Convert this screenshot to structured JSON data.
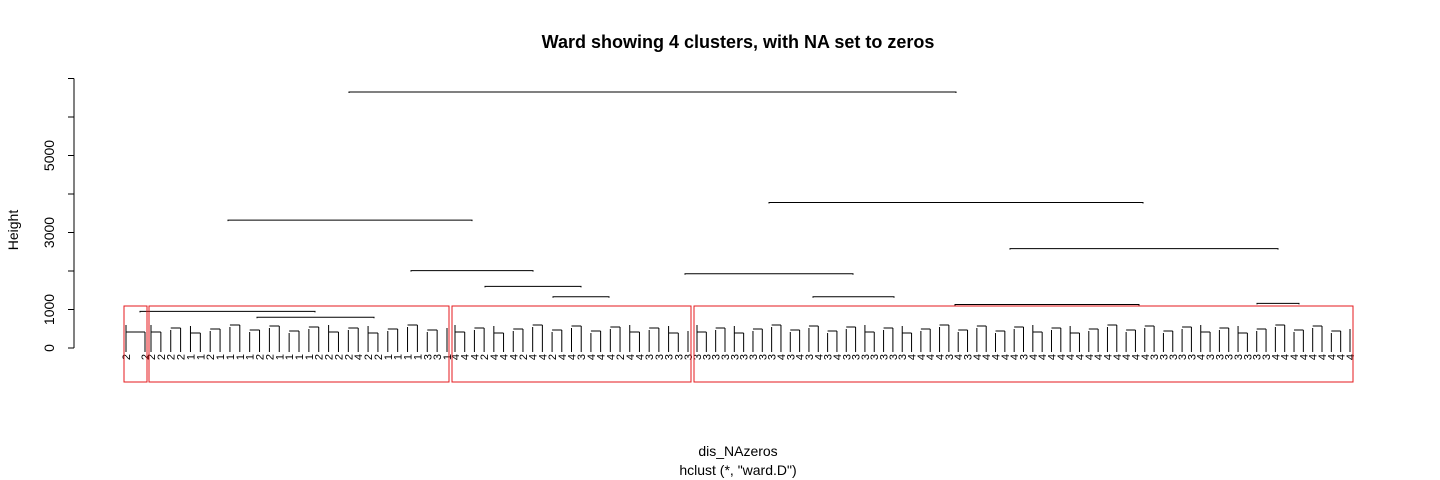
{
  "chart_data": {
    "type": "dendrogram",
    "title": "Ward showing 4 clusters, with NA set to zeros",
    "ylabel": "Height",
    "xlabel": "dis_NAzeros",
    "sub": "hclust (*, \"ward.D\")",
    "yticks": [
      0,
      1000,
      3000,
      5000
    ],
    "ylim": [
      0,
      6800
    ],
    "colors": {
      "tree": "#000000",
      "cluster_box": "#e41a1c"
    },
    "merges": [
      {
        "x1": 0.349,
        "x2": 0.956,
        "h": 6650
      },
      {
        "x1": 0.228,
        "x2": 0.472,
        "h": 3320
      },
      {
        "x1": 0.769,
        "x2": 1.143,
        "h": 3780
      },
      {
        "x1": 0.411,
        "x2": 0.533,
        "h": 2010
      },
      {
        "x1": 0.685,
        "x2": 0.853,
        "h": 1930
      },
      {
        "x1": 1.01,
        "x2": 1.278,
        "h": 2580
      },
      {
        "x1": 0.485,
        "x2": 0.581,
        "h": 1600
      },
      {
        "x1": 0.553,
        "x2": 0.609,
        "h": 1330
      },
      {
        "x1": 0.813,
        "x2": 0.894,
        "h": 1330
      },
      {
        "x1": 0.955,
        "x2": 1.139,
        "h": 1130
      },
      {
        "x1": 1.257,
        "x2": 1.299,
        "h": 1160
      },
      {
        "x1": 0.14,
        "x2": 0.315,
        "h": 950
      },
      {
        "x1": 0.257,
        "x2": 0.374,
        "h": 800
      }
    ],
    "clusters": [
      {
        "x1": 0.124,
        "x2": 0.147
      },
      {
        "x1": 0.149,
        "x2": 0.449
      },
      {
        "x1": 0.452,
        "x2": 0.691
      },
      {
        "x1": 0.694,
        "x2": 1.353
      }
    ],
    "leaf_groups": [
      {
        "labels": "22",
        "range": [
          0.126,
          0.145
        ]
      },
      {
        "labels": "2222112111122111122224221111331",
        "range": [
          0.151,
          0.447
        ]
      },
      {
        "labels": "4442444244244344424433333",
        "range": [
          0.455,
          0.688
        ]
      },
      {
        "labels": "33333333343434343333333444434344444344444444444443333343333333444444444",
        "range": [
          0.697,
          1.35
        ]
      }
    ]
  }
}
